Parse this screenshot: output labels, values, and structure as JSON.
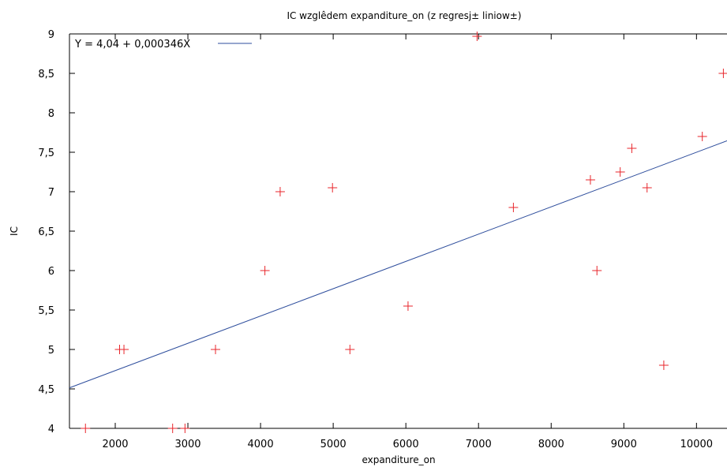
{
  "chart_data": {
    "type": "scatter",
    "title": "IC wzglêdem expanditure_on (z regresj± liniow±)",
    "xlabel": "expanditure_on",
    "ylabel": "IC",
    "xlim": [
      1370,
      10420
    ],
    "ylim": [
      4,
      9
    ],
    "xticks": [
      2000,
      3000,
      4000,
      5000,
      6000,
      7000,
      8000,
      9000,
      10000
    ],
    "xtick_labels": [
      "2000",
      "3000",
      "4000",
      "5000",
      "6000",
      "7000",
      "8000",
      "9000",
      "10000"
    ],
    "yticks": [
      4,
      4.5,
      5,
      5.5,
      6,
      6.5,
      7,
      7.5,
      8,
      8.5,
      9
    ],
    "ytick_labels": [
      "4",
      "4,5",
      "5",
      "5,5",
      "6",
      "6,5",
      "7",
      "7,5",
      "8",
      "8,5",
      "9"
    ],
    "grid": false,
    "legend_position": "top-left",
    "colors": {
      "points": "#e8262b",
      "line": "#2d4d9c"
    },
    "regression": {
      "label": "Y = 4,04 + 0,000346X",
      "intercept": 4.04,
      "slope": 0.000346
    },
    "points": [
      {
        "x": 1590,
        "y": 4.0
      },
      {
        "x": 2790,
        "y": 4.0
      },
      {
        "x": 2960,
        "y": 4.0
      },
      {
        "x": 2060,
        "y": 5.0
      },
      {
        "x": 2120,
        "y": 5.0
      },
      {
        "x": 3380,
        "y": 5.0
      },
      {
        "x": 4060,
        "y": 6.0
      },
      {
        "x": 4270,
        "y": 7.0
      },
      {
        "x": 4990,
        "y": 7.05
      },
      {
        "x": 5230,
        "y": 5.0
      },
      {
        "x": 6030,
        "y": 5.55
      },
      {
        "x": 6980,
        "y": 8.97
      },
      {
        "x": 7480,
        "y": 6.8
      },
      {
        "x": 8540,
        "y": 7.15
      },
      {
        "x": 8630,
        "y": 6.0
      },
      {
        "x": 8950,
        "y": 7.25
      },
      {
        "x": 9110,
        "y": 7.55
      },
      {
        "x": 9320,
        "y": 7.05
      },
      {
        "x": 9550,
        "y": 4.8
      },
      {
        "x": 10080,
        "y": 7.7
      },
      {
        "x": 10370,
        "y": 8.5
      }
    ]
  }
}
